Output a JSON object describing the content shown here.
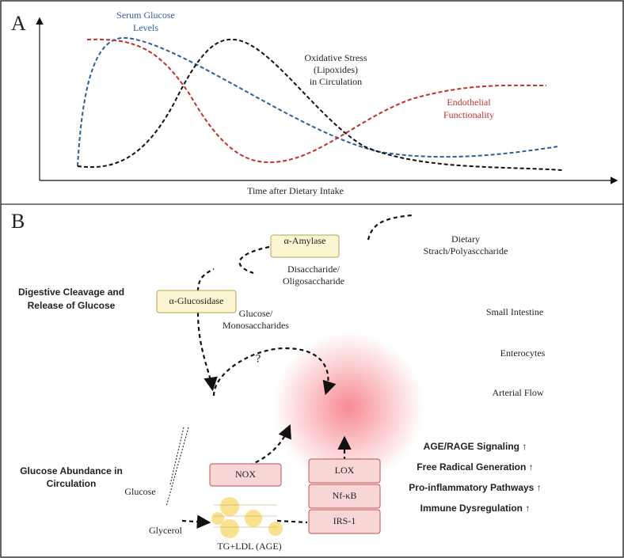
{
  "panel_a": {
    "label": "A",
    "serum_glucose": [
      "Serum Glucose",
      "Levels"
    ],
    "oxidative_stress": [
      "Oxidative Stress",
      "(Lipoxides)",
      "in Circulation"
    ],
    "endothelial": [
      "Endothelial",
      "Functionality"
    ],
    "x_axis_label": "Time after Dietary Intake"
  },
  "panel_b": {
    "label": "B",
    "dietary_starch": [
      "Dietary",
      "Strach/Polyasccharide"
    ],
    "amylase": "α-Amylase",
    "disaccharide": [
      "Disaccharide/",
      "Oligosaccharide"
    ],
    "digestive_cleavage": [
      "Digestive Cleavage and",
      "Release of Glucose"
    ],
    "glucosidase": "α-Glucosidase",
    "glucose_mono": [
      "Glucose/",
      "Monosaccharides"
    ],
    "small_intestine": "Small Intestine",
    "enterocytes": "Enterocytes",
    "arterial_flow": "Arterial Flow",
    "unknown": "?",
    "glucose_abundance": [
      "Glucose Abundance in",
      "Circulation"
    ],
    "glucose": "Glucose",
    "glycerol": "Glycerol",
    "tg_ldl": "TG+LDL (AGE)",
    "enzymes": {
      "nox": "NOX",
      "lox": "LOX",
      "nfkb": "Nf-κB",
      "irs1": "IRS-1"
    },
    "effects": [
      "AGE/RAGE Signaling ↑",
      "Free Radical Generation ↑",
      "Pro-inflammatory Pathways ↑",
      "Immune Dysregulation ↑"
    ]
  }
}
